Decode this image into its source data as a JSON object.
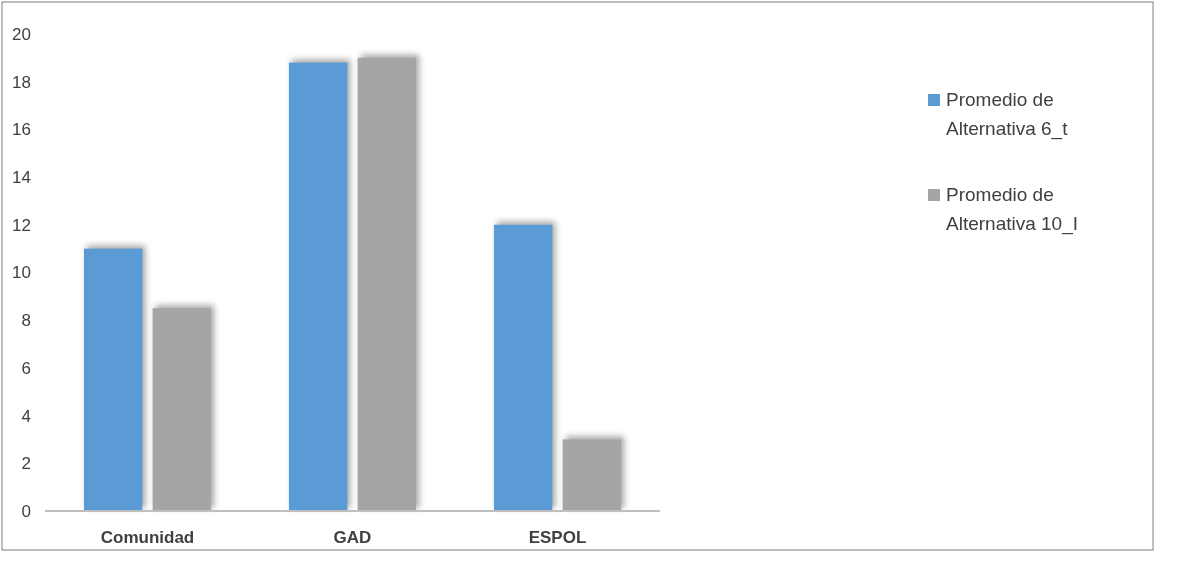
{
  "chart_data": {
    "type": "bar",
    "categories": [
      "Comunidad",
      "GAD",
      "ESPOL"
    ],
    "series": [
      {
        "name": "Promedio de Alternativa 6_t",
        "color": "#5b9bd5",
        "values": [
          11,
          18.8,
          12
        ]
      },
      {
        "name": "Promedio de Alternativa 10_I",
        "color": "#a5a5a5",
        "values": [
          8.5,
          19,
          3
        ]
      }
    ],
    "ylim": [
      0,
      20
    ],
    "yticks": [
      0,
      2,
      4,
      6,
      8,
      10,
      12,
      14,
      16,
      18,
      20
    ],
    "grid": false,
    "legend": "right"
  }
}
